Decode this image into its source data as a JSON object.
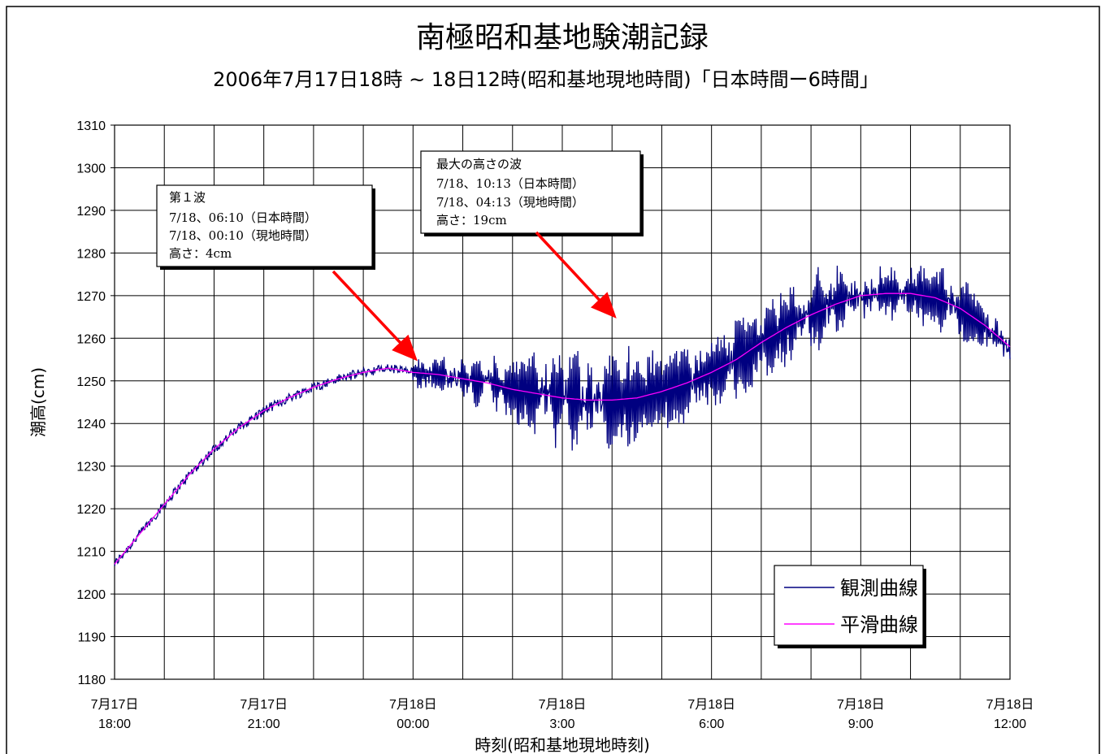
{
  "chart_data": {
    "type": "line",
    "title": "南極昭和基地験潮記録",
    "subtitle": "2006年7月17日18時 ~ 18日12時(昭和基地現地時間)「日本時間ー6時間」",
    "xlabel": "時刻(昭和基地現地時刻)",
    "ylabel": "潮高(cm)",
    "ylim": [
      1180,
      1310
    ],
    "y_ticks": [
      1180,
      1190,
      1200,
      1210,
      1220,
      1230,
      1240,
      1250,
      1260,
      1270,
      1280,
      1290,
      1300,
      1310
    ],
    "x_range_hours": [
      0,
      18
    ],
    "x_ticks": [
      {
        "hour": 0,
        "line1": "7月17日",
        "line2": "18:00"
      },
      {
        "hour": 3,
        "line1": "7月17日",
        "line2": "21:00"
      },
      {
        "hour": 6,
        "line1": "7月18日",
        "line2": "00:00"
      },
      {
        "hour": 9,
        "line1": "7月18日",
        "line2": "3:00"
      },
      {
        "hour": 12,
        "line1": "7月18日",
        "line2": "6:00"
      },
      {
        "hour": 15,
        "line1": "7月18日",
        "line2": "9:00"
      },
      {
        "hour": 18,
        "line1": "7月18日",
        "line2": "12:00"
      }
    ],
    "x_minor_grid_hours": 1,
    "grid": true,
    "legend_position": "bottom-right",
    "series": [
      {
        "name": "観測曲線",
        "color": "#000080",
        "noise_start_hour": 6.0,
        "envelope": [
          [
            6.0,
            3
          ],
          [
            7.0,
            6
          ],
          [
            8.0,
            8
          ],
          [
            9.0,
            12
          ],
          [
            10.0,
            13
          ],
          [
            11.0,
            9
          ],
          [
            12.0,
            9
          ],
          [
            13.0,
            10
          ],
          [
            14.0,
            10
          ],
          [
            15.0,
            9
          ],
          [
            16.0,
            7
          ],
          [
            17.0,
            8
          ],
          [
            18.0,
            5
          ]
        ]
      },
      {
        "name": "平滑曲線",
        "color": "#ff00ff",
        "x": [
          0,
          0.5,
          1,
          1.5,
          2,
          2.5,
          3,
          3.5,
          4,
          4.5,
          5,
          5.5,
          6,
          6.5,
          7,
          7.5,
          8,
          8.5,
          9,
          9.5,
          10,
          10.5,
          11,
          11.5,
          12,
          12.5,
          13,
          13.5,
          14,
          14.5,
          15,
          15.5,
          16,
          16.5,
          17,
          17.5,
          18
        ],
        "y": [
          1207,
          1214,
          1221,
          1228,
          1234,
          1239,
          1243,
          1246,
          1248.5,
          1250.5,
          1252,
          1253,
          1252,
          1251.5,
          1250.5,
          1249.5,
          1248,
          1247,
          1246,
          1245.5,
          1245.5,
          1246,
          1247.5,
          1249.5,
          1252,
          1255,
          1259,
          1262.5,
          1265.5,
          1268,
          1270,
          1270.5,
          1270.5,
          1269.5,
          1267,
          1263,
          1258
        ]
      }
    ],
    "annotations": [
      {
        "lines": [
          "第１波",
          "7/18、06:10（日本時間）",
          "7/18、00:10（現地時間）",
          "高さ：4cm"
        ],
        "target_hour": 6.1,
        "target_value": 1254
      },
      {
        "lines": [
          "最大の高さの波",
          "7/18、10:13（日本時間）",
          "7/18、04:13（現地時間）",
          "高さ：19cm"
        ],
        "target_hour": 10.1,
        "target_value": 1264
      }
    ],
    "arrow_color": "#ff0000"
  }
}
